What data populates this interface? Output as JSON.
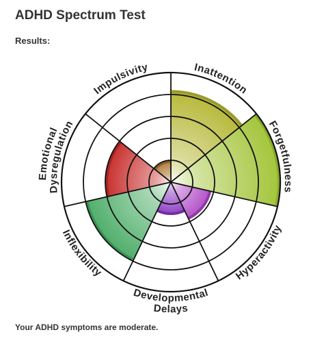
{
  "header": {
    "title": "ADHD Spectrum Test",
    "results_label": "Results:"
  },
  "footer": {
    "summary": "Your ADHD symptoms are moderate."
  },
  "chart_data": {
    "type": "polar-area",
    "title": "",
    "rings": 5,
    "max": 5,
    "grid": true,
    "categories": [
      {
        "label": "Inattention",
        "lines": [
          "Inattention"
        ],
        "value": 4.2,
        "color": "#b6b838",
        "shade": "#8a8a22"
      },
      {
        "label": "Forgetfulness",
        "lines": [
          "Forgetfulness"
        ],
        "value": 5.0,
        "color": "#a3c53a",
        "shade": "#7d9a22"
      },
      {
        "label": "Hyperactivity",
        "lines": [
          "Hyperactivity"
        ],
        "value": 1.9,
        "color": "#b24fc8",
        "shade": "#7e2c92"
      },
      {
        "label": "Developmental Delays",
        "lines": [
          "Developmental",
          "Delays"
        ],
        "value": 1.5,
        "color": "#8f3fc4",
        "shade": "#5f248c"
      },
      {
        "label": "Inflexibility",
        "lines": [
          "Inflexibility"
        ],
        "value": 4.0,
        "color": "#4fae6a",
        "shade": "#2e7f48"
      },
      {
        "label": "Emotional Dysregulation",
        "lines": [
          "Emotional",
          "Dysregulation"
        ],
        "value": 3.0,
        "color": "#c8302e",
        "shade": "#8f1e1c"
      },
      {
        "label": "Impulsivity",
        "lines": [
          "Impulsivity"
        ],
        "value": 1.0,
        "color": "#b07a3a",
        "shade": "#7a5020"
      }
    ]
  }
}
